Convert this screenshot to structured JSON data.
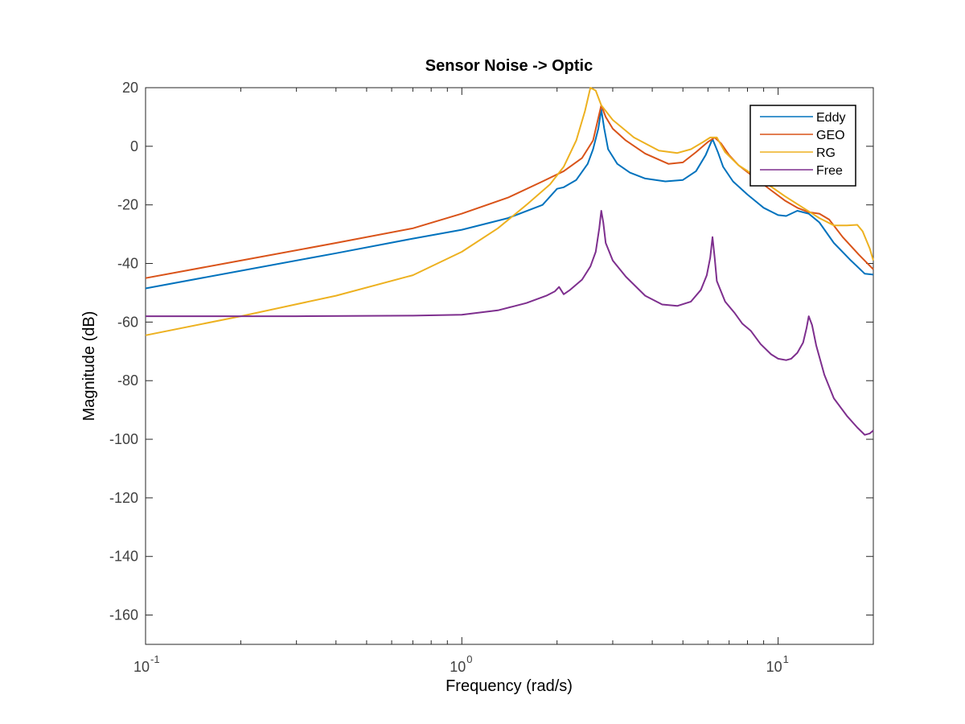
{
  "chart_data": {
    "type": "line",
    "title": "Sensor Noise -> Optic",
    "xlabel": "Frequency  (rad/s)",
    "ylabel": "Magnitude (dB)",
    "xscale": "log",
    "xlim": [
      0.1,
      20
    ],
    "ylim": [
      -170,
      20
    ],
    "grid": false,
    "legend_position": "top-right",
    "x_ticks": [
      {
        "value": 0.1,
        "base": "10",
        "exp": "-1"
      },
      {
        "value": 1,
        "base": "10",
        "exp": "0"
      },
      {
        "value": 10,
        "base": "10",
        "exp": "1"
      }
    ],
    "y_ticks": [
      {
        "value": 20,
        "label": "20"
      },
      {
        "value": 0,
        "label": "0"
      },
      {
        "value": -20,
        "label": "-20"
      },
      {
        "value": -40,
        "label": "-40"
      },
      {
        "value": -60,
        "label": "-60"
      },
      {
        "value": -80,
        "label": "-80"
      },
      {
        "value": -100,
        "label": "-100"
      },
      {
        "value": -120,
        "label": "-120"
      },
      {
        "value": -140,
        "label": "-140"
      },
      {
        "value": -160,
        "label": "-160"
      }
    ],
    "series": [
      {
        "name": "Eddy",
        "color": "#0072BD",
        "points": [
          [
            0.1,
            -48.5
          ],
          [
            0.2,
            -42.5
          ],
          [
            0.4,
            -36.5
          ],
          [
            0.7,
            -31.5
          ],
          [
            1.0,
            -28.5
          ],
          [
            1.4,
            -24.5
          ],
          [
            1.8,
            -20
          ],
          [
            2.0,
            -14.5
          ],
          [
            2.1,
            -14
          ],
          [
            2.3,
            -11.5
          ],
          [
            2.5,
            -6
          ],
          [
            2.6,
            -1
          ],
          [
            2.7,
            6
          ],
          [
            2.76,
            12.5
          ],
          [
            2.82,
            6
          ],
          [
            2.9,
            -1
          ],
          [
            3.1,
            -6
          ],
          [
            3.4,
            -9
          ],
          [
            3.8,
            -11
          ],
          [
            4.4,
            -12
          ],
          [
            5.0,
            -11.5
          ],
          [
            5.5,
            -8.5
          ],
          [
            5.9,
            -3
          ],
          [
            6.2,
            2.5
          ],
          [
            6.45,
            -2
          ],
          [
            6.7,
            -7
          ],
          [
            7.2,
            -12
          ],
          [
            8.0,
            -16.5
          ],
          [
            9.0,
            -21
          ],
          [
            10.0,
            -23.5
          ],
          [
            10.6,
            -23.8
          ],
          [
            11.5,
            -22
          ],
          [
            12.5,
            -23
          ],
          [
            13.5,
            -26
          ],
          [
            15.0,
            -33
          ],
          [
            17.0,
            -39
          ],
          [
            18.8,
            -43.5
          ],
          [
            20.0,
            -43.8
          ]
        ]
      },
      {
        "name": "GEO",
        "color": "#D95319",
        "points": [
          [
            0.1,
            -45
          ],
          [
            0.2,
            -39
          ],
          [
            0.4,
            -33
          ],
          [
            0.7,
            -28
          ],
          [
            1.0,
            -23
          ],
          [
            1.4,
            -17.5
          ],
          [
            1.8,
            -12
          ],
          [
            2.1,
            -8.5
          ],
          [
            2.4,
            -4
          ],
          [
            2.6,
            2
          ],
          [
            2.76,
            14
          ],
          [
            2.85,
            10
          ],
          [
            3.0,
            6
          ],
          [
            3.3,
            2
          ],
          [
            3.8,
            -2.5
          ],
          [
            4.5,
            -6
          ],
          [
            5.0,
            -5.5
          ],
          [
            5.5,
            -2
          ],
          [
            6.0,
            1.5
          ],
          [
            6.3,
            3
          ],
          [
            6.6,
            1
          ],
          [
            7.0,
            -3
          ],
          [
            7.5,
            -6.5
          ],
          [
            8.5,
            -11
          ],
          [
            9.5,
            -15
          ],
          [
            10.5,
            -18.5
          ],
          [
            11.5,
            -21
          ],
          [
            12.5,
            -22.5
          ],
          [
            13.5,
            -23
          ],
          [
            14.5,
            -25
          ],
          [
            16.0,
            -31
          ],
          [
            18.0,
            -37
          ],
          [
            20.0,
            -42
          ]
        ]
      },
      {
        "name": "RG",
        "color": "#EDB120",
        "points": [
          [
            0.1,
            -64.5
          ],
          [
            0.2,
            -58
          ],
          [
            0.4,
            -51
          ],
          [
            0.7,
            -44
          ],
          [
            1.0,
            -36
          ],
          [
            1.3,
            -28
          ],
          [
            1.6,
            -20
          ],
          [
            1.9,
            -13
          ],
          [
            2.1,
            -7
          ],
          [
            2.3,
            2
          ],
          [
            2.45,
            12
          ],
          [
            2.55,
            20
          ],
          [
            2.65,
            19
          ],
          [
            2.76,
            14
          ],
          [
            3.0,
            9
          ],
          [
            3.5,
            3
          ],
          [
            4.2,
            -1.5
          ],
          [
            4.8,
            -2.3
          ],
          [
            5.3,
            -1
          ],
          [
            5.8,
            1.5
          ],
          [
            6.1,
            3
          ],
          [
            6.4,
            3
          ],
          [
            6.8,
            -2
          ],
          [
            7.5,
            -6.5
          ],
          [
            9.0,
            -12
          ],
          [
            10.5,
            -17
          ],
          [
            12.0,
            -21
          ],
          [
            13.5,
            -24.5
          ],
          [
            15.0,
            -27
          ],
          [
            16.5,
            -27
          ],
          [
            17.8,
            -26.8
          ],
          [
            18.5,
            -29
          ],
          [
            19.5,
            -35
          ],
          [
            20.0,
            -39
          ]
        ]
      },
      {
        "name": "Free",
        "color": "#7E2F8E",
        "points": [
          [
            0.1,
            -58
          ],
          [
            0.3,
            -58
          ],
          [
            0.7,
            -57.8
          ],
          [
            1.0,
            -57.5
          ],
          [
            1.3,
            -56
          ],
          [
            1.6,
            -53.5
          ],
          [
            1.85,
            -51
          ],
          [
            1.97,
            -49.5
          ],
          [
            2.03,
            -48
          ],
          [
            2.1,
            -50.5
          ],
          [
            2.2,
            -49
          ],
          [
            2.4,
            -45.5
          ],
          [
            2.55,
            -41
          ],
          [
            2.65,
            -36
          ],
          [
            2.72,
            -28
          ],
          [
            2.76,
            -22
          ],
          [
            2.8,
            -26
          ],
          [
            2.85,
            -33
          ],
          [
            3.0,
            -39
          ],
          [
            3.3,
            -44.5
          ],
          [
            3.8,
            -51
          ],
          [
            4.3,
            -54
          ],
          [
            4.8,
            -54.5
          ],
          [
            5.3,
            -53
          ],
          [
            5.7,
            -49
          ],
          [
            5.95,
            -44
          ],
          [
            6.1,
            -38
          ],
          [
            6.2,
            -31
          ],
          [
            6.3,
            -38
          ],
          [
            6.4,
            -46
          ],
          [
            6.8,
            -53
          ],
          [
            7.3,
            -57
          ],
          [
            7.7,
            -60.5
          ],
          [
            8.2,
            -63
          ],
          [
            8.8,
            -67.5
          ],
          [
            9.5,
            -71
          ],
          [
            10.0,
            -72.5
          ],
          [
            10.6,
            -73
          ],
          [
            11.0,
            -72.5
          ],
          [
            11.5,
            -70.5
          ],
          [
            12.0,
            -67
          ],
          [
            12.3,
            -62
          ],
          [
            12.5,
            -58
          ],
          [
            12.8,
            -61
          ],
          [
            13.2,
            -68
          ],
          [
            14.0,
            -78
          ],
          [
            15.0,
            -86
          ],
          [
            16.5,
            -92
          ],
          [
            17.8,
            -96
          ],
          [
            18.8,
            -98.5
          ],
          [
            19.5,
            -98
          ],
          [
            20.0,
            -97
          ]
        ]
      }
    ]
  }
}
